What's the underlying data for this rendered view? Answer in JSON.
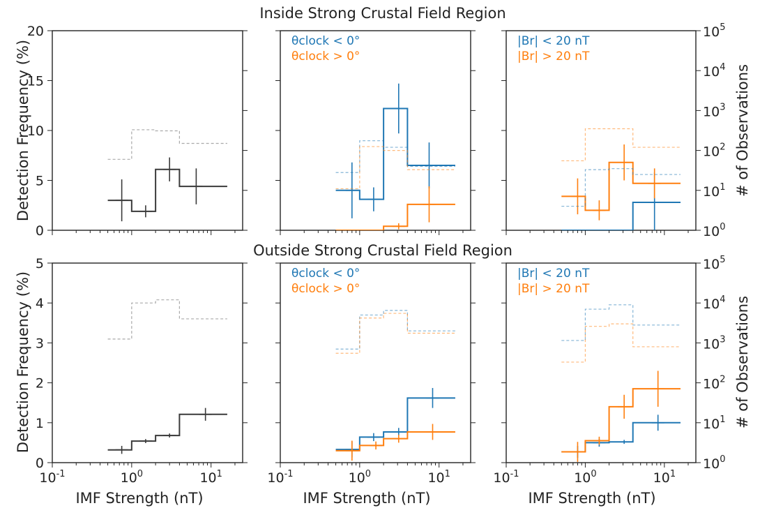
{
  "figure": {
    "row_titles": [
      "Inside Strong Crustal Field Region",
      "Outside Strong Crustal Field Region"
    ],
    "xlabel": "IMF Strength (nT)",
    "ylabel_left": "Detection Frequency (%)",
    "ylabel_right": "# of Observations",
    "colors": {
      "black": "#3a3a3a",
      "gray": "#a9a9a9",
      "blue": "#1f77b4",
      "orange": "#ff7f0e"
    }
  },
  "chart_data": [
    {
      "type": "line",
      "row": 0,
      "col": 0,
      "xscale": "log",
      "xlim": [
        0.1,
        25
      ],
      "ylim": [
        0,
        20
      ],
      "yticks": [
        0,
        5,
        10,
        15,
        20
      ],
      "y2scale": "log",
      "y2lim": [
        1,
        100000
      ],
      "bin_edges": [
        0.5,
        1,
        2,
        4,
        16
      ],
      "series": [
        {
          "color_key": "black",
          "kind": "frequency",
          "values": [
            3.0,
            1.9,
            6.1,
            4.4
          ],
          "x_centers": [
            0.75,
            1.5,
            3,
            6.5
          ],
          "errors": [
            2.1,
            0.6,
            1.2,
            1.8
          ]
        },
        {
          "color_key": "gray",
          "kind": "observations",
          "values": [
            60,
            330,
            310,
            150
          ]
        }
      ]
    },
    {
      "type": "line",
      "row": 0,
      "col": 1,
      "xscale": "log",
      "xlim": [
        0.1,
        25
      ],
      "ylim": [
        0,
        20
      ],
      "y2scale": "log",
      "y2lim": [
        1,
        100000
      ],
      "bin_edges": [
        0.5,
        1,
        2,
        4,
        16
      ],
      "legend": [
        {
          "text": "θclock < 0°",
          "color_key": "blue"
        },
        {
          "text": "θclock > 0°",
          "color_key": "orange"
        }
      ],
      "series": [
        {
          "color_key": "blue",
          "kind": "frequency",
          "values": [
            4.0,
            3.1,
            12.2,
            6.5
          ],
          "x_centers": [
            0.8,
            1.5,
            3.1,
            7.5
          ],
          "errors": [
            2.8,
            1.2,
            2.5,
            2.3
          ]
        },
        {
          "color_key": "orange",
          "kind": "frequency",
          "values": [
            0.0,
            0.0,
            0.4,
            2.6
          ],
          "x_centers": [
            0.8,
            1.5,
            3.1,
            7.5
          ],
          "errors": [
            0,
            0,
            0.3,
            1.8
          ]
        },
        {
          "color_key": "blue",
          "kind": "observations",
          "values": [
            28,
            175,
            120,
            40
          ]
        },
        {
          "color_key": "orange",
          "kind": "observations",
          "values": [
            11,
            125,
            100,
            33
          ]
        }
      ]
    },
    {
      "type": "line",
      "row": 0,
      "col": 2,
      "xscale": "log",
      "xlim": [
        0.1,
        25
      ],
      "ylim": [
        0,
        20
      ],
      "y2scale": "log",
      "y2lim": [
        1,
        100000
      ],
      "y2ticks": [
        1,
        10,
        100,
        1000,
        10000,
        100000
      ],
      "bin_edges": [
        0.5,
        1,
        2,
        4,
        16
      ],
      "legend": [
        {
          "text": "|Br| < 20 nT",
          "color_key": "blue"
        },
        {
          "text": "|Br| > 20 nT",
          "color_key": "orange"
        }
      ],
      "series": [
        {
          "color_key": "blue",
          "kind": "frequency",
          "values": [
            0.0,
            0.0,
            0.0,
            2.8
          ],
          "x_centers": [
            0.8,
            1.5,
            3.1,
            7.5
          ],
          "errors": [
            0,
            0,
            0,
            3.0
          ]
        },
        {
          "color_key": "orange",
          "kind": "frequency",
          "values": [
            3.4,
            2.0,
            6.8,
            4.7
          ],
          "x_centers": [
            0.8,
            1.5,
            3.1,
            7.5
          ],
          "errors": [
            1.8,
            1.0,
            1.8,
            1.5
          ]
        },
        {
          "color_key": "blue",
          "kind": "observations",
          "values": [
            4,
            33,
            35,
            25
          ]
        },
        {
          "color_key": "orange",
          "kind": "observations",
          "values": [
            55,
            350,
            350,
            120
          ]
        }
      ]
    },
    {
      "type": "line",
      "row": 1,
      "col": 0,
      "xscale": "log",
      "xlim": [
        0.1,
        25
      ],
      "ylim": [
        0,
        5
      ],
      "yticks": [
        0,
        1,
        2,
        3,
        4,
        5
      ],
      "y2scale": "log",
      "y2lim": [
        1,
        100000
      ],
      "bin_edges": [
        0.5,
        1,
        2,
        4,
        16
      ],
      "series": [
        {
          "color_key": "black",
          "kind": "frequency",
          "values": [
            0.32,
            0.54,
            0.68,
            1.21
          ],
          "x_centers": [
            0.75,
            1.5,
            3.0,
            8.5
          ],
          "errors": [
            0.1,
            0.05,
            0.05,
            0.16
          ]
        },
        {
          "color_key": "gray",
          "kind": "observations",
          "values": [
            1250,
            10000,
            12000,
            4000
          ]
        }
      ]
    },
    {
      "type": "line",
      "row": 1,
      "col": 1,
      "xscale": "log",
      "xlim": [
        0.1,
        25
      ],
      "ylim": [
        0,
        5
      ],
      "y2scale": "log",
      "y2lim": [
        1,
        100000
      ],
      "bin_edges": [
        0.5,
        1,
        2,
        4,
        16
      ],
      "legend": [
        {
          "text": "θclock < 0°",
          "color_key": "blue"
        },
        {
          "text": "θclock > 0°",
          "color_key": "orange"
        }
      ],
      "series": [
        {
          "color_key": "blue",
          "kind": "frequency",
          "values": [
            0.33,
            0.64,
            0.77,
            1.62
          ],
          "x_centers": [
            0.8,
            1.5,
            3.1,
            8.3
          ],
          "errors": [
            0.2,
            0.1,
            0.1,
            0.25
          ]
        },
        {
          "color_key": "orange",
          "kind": "frequency",
          "values": [
            0.3,
            0.43,
            0.6,
            0.77
          ],
          "x_centers": [
            0.8,
            1.6,
            3.1,
            8.3
          ],
          "errors": [
            0.25,
            0.1,
            0.1,
            0.2
          ]
        },
        {
          "color_key": "blue",
          "kind": "observations",
          "values": [
            700,
            5000,
            6500,
            2000
          ]
        },
        {
          "color_key": "orange",
          "kind": "observations",
          "values": [
            550,
            4200,
            5500,
            1750
          ]
        }
      ]
    },
    {
      "type": "line",
      "row": 1,
      "col": 2,
      "xscale": "log",
      "xlim": [
        0.1,
        25
      ],
      "ylim": [
        0,
        5
      ],
      "y2scale": "log",
      "y2lim": [
        1,
        100000
      ],
      "y2ticks": [
        1,
        10,
        100,
        1000,
        10000,
        100000
      ],
      "bin_edges": [
        0.5,
        1,
        2,
        4,
        16
      ],
      "legend": [
        {
          "text": "|Br| < 20 nT",
          "color_key": "blue"
        },
        {
          "text": "|Br| > 20 nT",
          "color_key": "orange"
        }
      ],
      "series": [
        {
          "color_key": "blue",
          "kind": "frequency",
          "values": [
            0.27,
            0.5,
            0.52,
            1.0
          ],
          "x_centers": [
            0.8,
            1.5,
            3.1,
            8.3
          ],
          "errors": [
            0.15,
            0.1,
            0.05,
            0.2
          ]
        },
        {
          "color_key": "orange",
          "kind": "frequency",
          "values": [
            0.27,
            0.55,
            1.4,
            1.85
          ],
          "x_centers": [
            0.8,
            1.5,
            3.1,
            8.3
          ],
          "errors": [
            0.25,
            0.1,
            0.3,
            0.45
          ]
        },
        {
          "color_key": "blue",
          "kind": "observations",
          "values": [
            1150,
            7000,
            9000,
            2800
          ]
        },
        {
          "color_key": "orange",
          "kind": "observations",
          "values": [
            330,
            2600,
            3000,
            800
          ]
        }
      ]
    }
  ]
}
